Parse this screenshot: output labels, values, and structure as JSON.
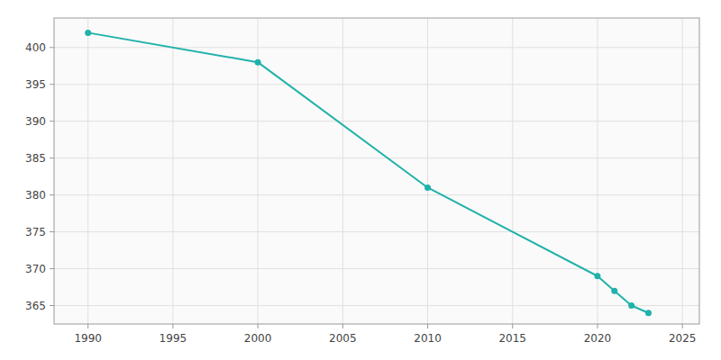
{
  "chart_data": {
    "type": "line",
    "x": [
      1990,
      2000,
      2010,
      2020,
      2021,
      2022,
      2023
    ],
    "values": [
      402,
      398,
      381,
      369,
      367,
      365,
      364
    ],
    "color": "#20B2AA",
    "marker": "circle",
    "xlim": [
      1988,
      2026
    ],
    "ylim": [
      362.5,
      404
    ],
    "xticks": [
      1990,
      1995,
      2000,
      2005,
      2010,
      2015,
      2020,
      2025
    ],
    "yticks": [
      365,
      370,
      375,
      380,
      385,
      390,
      395,
      400
    ],
    "grid": true
  }
}
